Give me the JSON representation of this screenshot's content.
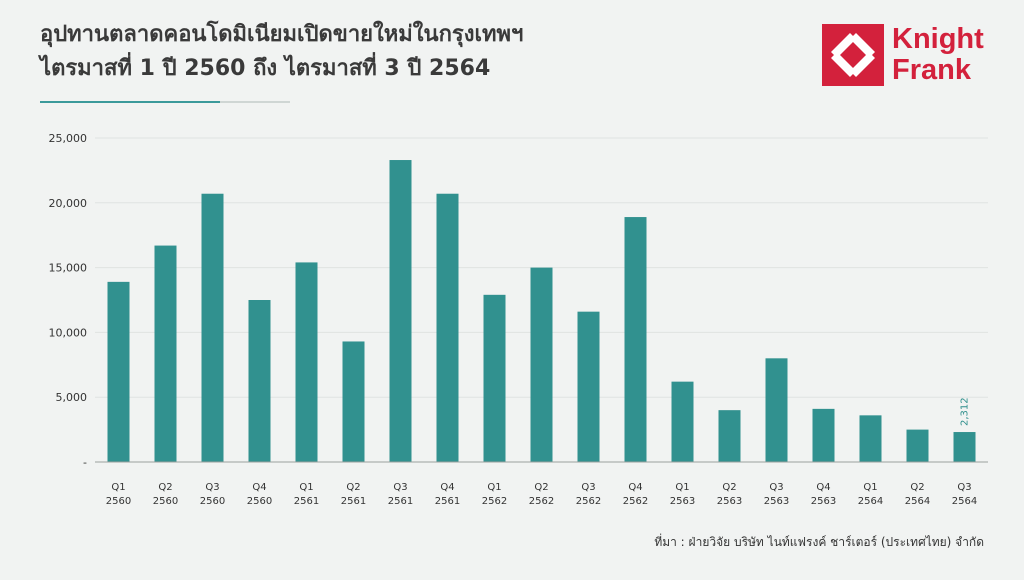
{
  "header": {
    "title_line1": "อุปทานตลาดคอนโดมิเนียมเปิดขายใหม่ในกรุงเทพฯ",
    "title_line2": "ไตรมาสที่ 1 ปี 2560 ถึง ไตรมาสที่ 3 ปี 2564"
  },
  "logo": {
    "line1": "Knight",
    "line2": "Frank",
    "color": "#d3213c"
  },
  "source": "ที่มา : ฝ่ายวิจัย บริษัท ไนท์แฟรงค์ ชาร์เตอร์ (ประเทศไทย) จำกัด",
  "chart_data": {
    "type": "bar",
    "categories": [
      [
        "Q1",
        "2560"
      ],
      [
        "Q2",
        "2560"
      ],
      [
        "Q3",
        "2560"
      ],
      [
        "Q4",
        "2560"
      ],
      [
        "Q1",
        "2561"
      ],
      [
        "Q2",
        "2561"
      ],
      [
        "Q3",
        "2561"
      ],
      [
        "Q4",
        "2561"
      ],
      [
        "Q1",
        "2562"
      ],
      [
        "Q2",
        "2562"
      ],
      [
        "Q3",
        "2562"
      ],
      [
        "Q4",
        "2562"
      ],
      [
        "Q1",
        "2563"
      ],
      [
        "Q2",
        "2563"
      ],
      [
        "Q3",
        "2563"
      ],
      [
        "Q4",
        "2563"
      ],
      [
        "Q1",
        "2564"
      ],
      [
        "Q2",
        "2564"
      ],
      [
        "Q3",
        "2564"
      ]
    ],
    "values": [
      13900,
      16700,
      20700,
      12500,
      15400,
      9300,
      23300,
      20700,
      12900,
      15000,
      11600,
      18900,
      6200,
      4000,
      8000,
      4100,
      3600,
      2500,
      2312
    ],
    "data_labels": {
      "18": "2,312"
    },
    "ylim": [
      0,
      25000
    ],
    "yticks": [
      0,
      5000,
      10000,
      15000,
      20000,
      25000
    ],
    "ytick_labels": [
      "-",
      "5,000",
      "10,000",
      "15,000",
      "20,000",
      "25,000"
    ],
    "grid": true,
    "bar_color": "#31918f",
    "grid_color": "#dfe3e1",
    "label_color": "#2f8f8c"
  }
}
